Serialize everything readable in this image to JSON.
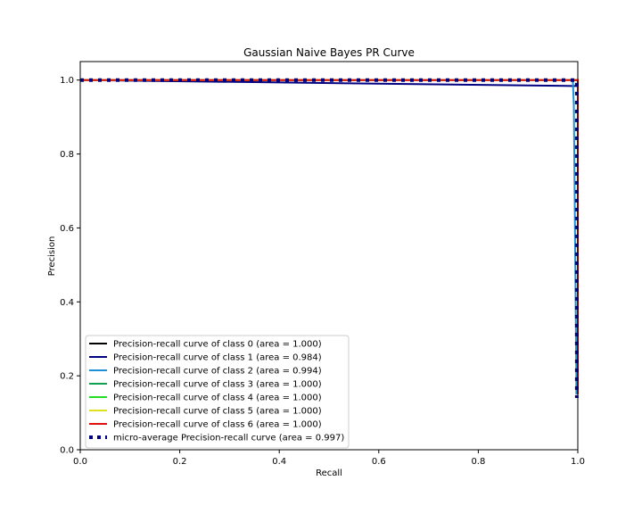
{
  "chart_data": {
    "type": "line",
    "title": "Gaussian Naive Bayes PR Curve",
    "xlabel": "Recall",
    "ylabel": "Precision",
    "xlim": [
      0.0,
      1.0
    ],
    "ylim": [
      0.0,
      1.05
    ],
    "xticks": [
      "0.0",
      "0.2",
      "0.4",
      "0.6",
      "0.8",
      "1.0"
    ],
    "yticks": [
      "0.0",
      "0.2",
      "0.4",
      "0.6",
      "0.8",
      "1.0"
    ],
    "xtick_values": [
      0,
      0.2,
      0.4,
      0.6,
      0.8,
      1.0
    ],
    "ytick_values": [
      0,
      0.2,
      0.4,
      0.6,
      0.8,
      1.0
    ],
    "grid": false,
    "legend_position": "lower-left",
    "series": [
      {
        "name": "Precision-recall curve of class 0 (area = 1.000)",
        "color": "#000000",
        "style": "solid",
        "x": [
          0.0,
          1.0,
          1.0
        ],
        "y": [
          1.0,
          1.0,
          0.15
        ]
      },
      {
        "name": "Precision-recall curve of class 1 (area = 0.984)",
        "color": "#000080",
        "style": "solid",
        "x": [
          0.0,
          0.99,
          1.0,
          1.0
        ],
        "y": [
          1.0,
          0.984,
          0.984,
          0.15
        ]
      },
      {
        "name": "Precision-recall curve of class 2 (area = 0.994)",
        "color": "#1f8fd6",
        "style": "solid",
        "x": [
          0.0,
          0.99,
          0.992,
          0.997,
          0.997
        ],
        "y": [
          1.0,
          1.0,
          0.93,
          0.2,
          0.15
        ]
      },
      {
        "name": "Precision-recall curve of class 3 (area = 1.000)",
        "color": "#12a050",
        "style": "solid",
        "x": [
          0.0,
          1.0,
          1.0
        ],
        "y": [
          1.0,
          1.0,
          0.15
        ]
      },
      {
        "name": "Precision-recall curve of class 4 (area = 1.000)",
        "color": "#22dd22",
        "style": "solid",
        "x": [
          0.0,
          1.0,
          1.0
        ],
        "y": [
          1.0,
          1.0,
          0.15
        ]
      },
      {
        "name": "Precision-recall curve of class 5 (area = 1.000)",
        "color": "#e0e020",
        "style": "solid",
        "x": [
          0.0,
          1.0,
          1.0
        ],
        "y": [
          1.0,
          1.0,
          0.15
        ]
      },
      {
        "name": "Precision-recall curve of class 6 (area = 1.000)",
        "color": "#e01010",
        "style": "solid",
        "x": [
          0.0,
          1.0,
          1.0
        ],
        "y": [
          1.0,
          1.0,
          0.15
        ]
      },
      {
        "name": "micro-average Precision-recall curve (area = 0.997)",
        "color": "#000080",
        "style": "dotted",
        "x": [
          0.0,
          0.998,
          0.998
        ],
        "y": [
          1.0,
          1.0,
          0.14
        ]
      }
    ]
  }
}
